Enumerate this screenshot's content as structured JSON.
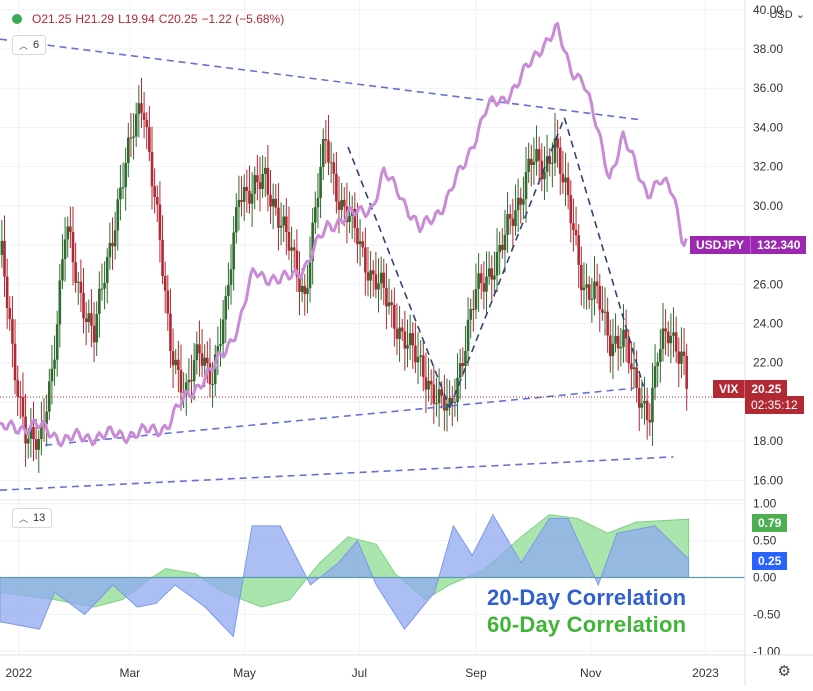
{
  "header": {
    "ohlc_open": "O21.25",
    "ohlc_high": "H21.29",
    "ohlc_low": "L19.94",
    "ohlc_close": "C20.25",
    "ohlc_change": "−1.22 (−5.68%)",
    "currency": "USD",
    "main_study_count": "6",
    "lower_study_count": "13"
  },
  "tags": {
    "usdjpy_name": "USDJPY",
    "usdjpy_value": "132.340",
    "vix_name": "VIX",
    "vix_value": "20.25",
    "vix_countdown": "02:35:12",
    "corr60_value": "0.79",
    "corr20_value": "0.25"
  },
  "legend": {
    "corr20": "20-Day Correlation",
    "corr60": "60-Day Correlation"
  },
  "colors": {
    "vix_up": "#2e6b2e",
    "vix_down": "#b22833",
    "usdjpy": "#c98bd6",
    "trend": "#6670d8",
    "wedge": "#34427a",
    "corr20_fill": "#8fa9f2",
    "corr60_fill": "#9be0a0",
    "corr_overlap": "#5d9bb0",
    "tag_purple": "#9c27b0",
    "tag_red": "#b22833",
    "tag_green": "#4caf50",
    "tag_blue": "#2962ff",
    "legend_blue": "#2f5fd0",
    "legend_green": "#3fb536"
  },
  "chart_data": [
    {
      "type": "line",
      "subtype": "candlestick-with-overlay",
      "series_main": "VIX",
      "overlay_series": "USDJPY",
      "y_ticks": [
        16.0,
        18.0,
        20.0,
        22.0,
        24.0,
        26.0,
        28.0,
        30.0,
        32.0,
        34.0,
        36.0,
        38.0,
        40.0
      ],
      "ylim": [
        15.0,
        40.5
      ],
      "x_labels": [
        "2022",
        "Mar",
        "May",
        "Jul",
        "Sep",
        "Nov",
        "2023"
      ],
      "x_tick_dates": [
        "2022-01-01",
        "2022-03-01",
        "2022-05-01",
        "2022-07-01",
        "2022-09-01",
        "2022-11-01",
        "2023-01-01"
      ],
      "xlim": [
        "2021-12-22",
        "2023-01-22"
      ],
      "vix_close_path": [
        [
          "2021-12-23",
          27.5
        ],
        [
          "2021-12-29",
          22.0
        ],
        [
          "2022-01-05",
          18.5
        ],
        [
          "2022-01-12",
          17.5
        ],
        [
          "2022-01-19",
          22.0
        ],
        [
          "2022-01-26",
          29.0
        ],
        [
          "2022-02-01",
          26.0
        ],
        [
          "2022-02-10",
          23.5
        ],
        [
          "2022-02-17",
          27.0
        ],
        [
          "2022-02-24",
          31.0
        ],
        [
          "2022-03-01",
          33.0
        ],
        [
          "2022-03-08",
          35.5
        ],
        [
          "2022-03-15",
          30.0
        ],
        [
          "2022-03-22",
          23.0
        ],
        [
          "2022-03-31",
          20.5
        ],
        [
          "2022-04-07",
          22.5
        ],
        [
          "2022-04-14",
          21.5
        ],
        [
          "2022-04-21",
          24.5
        ],
        [
          "2022-04-28",
          31.0
        ],
        [
          "2022-05-05",
          30.5
        ],
        [
          "2022-05-12",
          31.5
        ],
        [
          "2022-05-19",
          29.5
        ],
        [
          "2022-05-26",
          27.5
        ],
        [
          "2022-06-02",
          25.5
        ],
        [
          "2022-06-13",
          33.5
        ],
        [
          "2022-06-21",
          30.0
        ],
        [
          "2022-06-30",
          28.5
        ],
        [
          "2022-07-07",
          26.5
        ],
        [
          "2022-07-14",
          25.5
        ],
        [
          "2022-07-21",
          24.0
        ],
        [
          "2022-07-29",
          22.5
        ],
        [
          "2022-08-05",
          21.5
        ],
        [
          "2022-08-12",
          20.0
        ],
        [
          "2022-08-18",
          19.5
        ],
        [
          "2022-08-25",
          22.5
        ],
        [
          "2022-09-01",
          25.5
        ],
        [
          "2022-09-13",
          27.5
        ],
        [
          "2022-09-23",
          30.0
        ],
        [
          "2022-09-30",
          32.5
        ],
        [
          "2022-10-07",
          31.5
        ],
        [
          "2022-10-13",
          33.5
        ],
        [
          "2022-10-21",
          29.5
        ],
        [
          "2022-10-28",
          26.0
        ],
        [
          "2022-11-04",
          25.5
        ],
        [
          "2022-11-11",
          23.0
        ],
        [
          "2022-11-18",
          23.5
        ],
        [
          "2022-11-25",
          20.5
        ],
        [
          "2022-12-02",
          19.5
        ],
        [
          "2022-12-07",
          22.5
        ],
        [
          "2022-12-13",
          23.5
        ],
        [
          "2022-12-20",
          22.5
        ],
        [
          "2022-12-23",
          20.25
        ]
      ],
      "usdjpy_path": [
        [
          "2021-12-22",
          18.6
        ],
        [
          "2022-01-10",
          18.8
        ],
        [
          "2022-01-25",
          18.1
        ],
        [
          "2022-02-15",
          18.3
        ],
        [
          "2022-03-07",
          18.4
        ],
        [
          "2022-03-21",
          18.8
        ],
        [
          "2022-03-31",
          20.3
        ],
        [
          "2022-04-14",
          21.6
        ],
        [
          "2022-04-28",
          23.9
        ],
        [
          "2022-05-06",
          26.7
        ],
        [
          "2022-05-20",
          26.1
        ],
        [
          "2022-06-03",
          27.0
        ],
        [
          "2022-06-14",
          29.0
        ],
        [
          "2022-06-24",
          29.4
        ],
        [
          "2022-07-08",
          30.0
        ],
        [
          "2022-07-14",
          31.6
        ],
        [
          "2022-07-22",
          30.8
        ],
        [
          "2022-08-02",
          28.7
        ],
        [
          "2022-08-16",
          30.2
        ],
        [
          "2022-08-26",
          32.2
        ],
        [
          "2022-09-07",
          35.0
        ],
        [
          "2022-09-16",
          35.5
        ],
        [
          "2022-09-23",
          36.2
        ],
        [
          "2022-10-06",
          38.2
        ],
        [
          "2022-10-14",
          39.0
        ],
        [
          "2022-10-21",
          37.0
        ],
        [
          "2022-10-28",
          36.5
        ],
        [
          "2022-11-04",
          34.0
        ],
        [
          "2022-11-11",
          31.5
        ],
        [
          "2022-11-18",
          33.5
        ],
        [
          "2022-11-25",
          32.0
        ],
        [
          "2022-12-01",
          30.7
        ],
        [
          "2022-12-08",
          31.2
        ],
        [
          "2022-12-15",
          30.7
        ],
        [
          "2022-12-20",
          28.3
        ],
        [
          "2022-12-23",
          28.3
        ]
      ],
      "trendlines": [
        {
          "style": "dashed",
          "from": [
            "2021-12-22",
            38.5
          ],
          "to": [
            "2022-11-27",
            34.4
          ]
        },
        {
          "style": "dashed",
          "from": [
            "2022-01-15",
            17.8
          ],
          "to": [
            "2022-11-24",
            20.7
          ]
        },
        {
          "style": "dashed",
          "from": [
            "2021-12-22",
            15.5
          ],
          "to": [
            "2022-12-15",
            17.2
          ]
        },
        {
          "style": "dashed",
          "from": [
            "2022-06-25",
            33.0
          ],
          "to": [
            "2022-08-18",
            19.7
          ]
        },
        {
          "style": "dashed",
          "from": [
            "2022-08-18",
            19.7
          ],
          "to": [
            "2022-10-18",
            34.5
          ]
        },
        {
          "style": "dashed",
          "from": [
            "2022-10-18",
            34.5
          ],
          "to": [
            "2022-11-29",
            20.8
          ]
        }
      ],
      "current_price_line": 20.25
    },
    {
      "type": "area",
      "y_ticks": [
        -1.0,
        -0.5,
        0.0,
        0.5,
        1.0
      ],
      "ylim": [
        -1.05,
        1.05
      ],
      "series": [
        {
          "name": "60-Day Correlation",
          "values": [
            [
              "2021-12-22",
              -0.2
            ],
            [
              "2022-01-20",
              -0.3
            ],
            [
              "2022-02-10",
              -0.4
            ],
            [
              "2022-02-25",
              -0.3
            ],
            [
              "2022-03-10",
              -0.05
            ],
            [
              "2022-03-20",
              0.12
            ],
            [
              "2022-04-05",
              0.05
            ],
            [
              "2022-04-20",
              -0.2
            ],
            [
              "2022-05-10",
              -0.4
            ],
            [
              "2022-05-25",
              -0.3
            ],
            [
              "2022-06-10",
              0.2
            ],
            [
              "2022-06-25",
              0.55
            ],
            [
              "2022-07-10",
              0.45
            ],
            [
              "2022-07-20",
              0.05
            ],
            [
              "2022-08-05",
              -0.3
            ],
            [
              "2022-08-18",
              -0.1
            ],
            [
              "2022-09-05",
              0.1
            ],
            [
              "2022-09-25",
              0.55
            ],
            [
              "2022-10-10",
              0.85
            ],
            [
              "2022-10-25",
              0.8
            ],
            [
              "2022-11-10",
              0.6
            ],
            [
              "2022-11-25",
              0.75
            ],
            [
              "2022-12-23",
              0.79
            ]
          ]
        },
        {
          "name": "20-Day Correlation",
          "values": [
            [
              "2021-12-22",
              -0.6
            ],
            [
              "2022-01-12",
              -0.7
            ],
            [
              "2022-01-20",
              -0.2
            ],
            [
              "2022-02-05",
              -0.5
            ],
            [
              "2022-02-20",
              -0.1
            ],
            [
              "2022-03-05",
              -0.4
            ],
            [
              "2022-03-15",
              -0.35
            ],
            [
              "2022-03-25",
              -0.1
            ],
            [
              "2022-04-10",
              -0.4
            ],
            [
              "2022-04-25",
              -0.8
            ],
            [
              "2022-05-05",
              0.7
            ],
            [
              "2022-05-20",
              0.7
            ],
            [
              "2022-06-05",
              -0.1
            ],
            [
              "2022-06-20",
              0.2
            ],
            [
              "2022-06-30",
              0.5
            ],
            [
              "2022-07-10",
              -0.1
            ],
            [
              "2022-07-25",
              -0.7
            ],
            [
              "2022-08-10",
              -0.2
            ],
            [
              "2022-08-20",
              0.7
            ],
            [
              "2022-08-30",
              0.3
            ],
            [
              "2022-09-10",
              0.85
            ],
            [
              "2022-09-25",
              0.2
            ],
            [
              "2022-10-10",
              0.8
            ],
            [
              "2022-10-20",
              0.8
            ],
            [
              "2022-11-05",
              -0.1
            ],
            [
              "2022-11-15",
              0.6
            ],
            [
              "2022-12-05",
              0.7
            ],
            [
              "2022-12-23",
              0.25
            ]
          ]
        }
      ]
    }
  ]
}
